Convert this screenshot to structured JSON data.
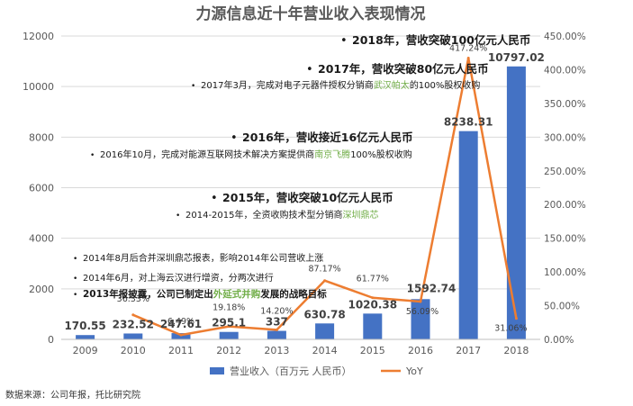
{
  "chart_data": {
    "type": "bar",
    "title": "力源信息近十年营业收入表现情况",
    "categories": [
      "2009",
      "2010",
      "2011",
      "2012",
      "2013",
      "2014",
      "2015",
      "2016",
      "2017",
      "2018"
    ],
    "series": [
      {
        "name": "营业收入（百万元 人民币）",
        "kind": "bar",
        "axis": "left",
        "values": [
          170.55,
          232.52,
          247.61,
          295.1,
          337,
          630.78,
          1020.38,
          1592.74,
          8238.31,
          10797.02
        ],
        "labels": [
          "170.55",
          "232.52",
          "247.61",
          "295.1",
          "337",
          "630.78",
          "1020.38",
          "1592.74",
          "8238.31",
          "10797.02"
        ],
        "color": "#4472C4"
      },
      {
        "name": "YoY",
        "kind": "line",
        "axis": "right",
        "values": [
          null,
          36.33,
          6.49,
          19.18,
          14.2,
          87.17,
          61.77,
          56.09,
          417.24,
          31.06
        ],
        "labels": [
          "",
          "36.33%",
          "6.49%",
          "19.18%",
          "14.20%",
          "87.17%",
          "61.77%",
          "56.09%",
          "417.24%",
          "31.06%"
        ],
        "color": "#ED7D31"
      }
    ],
    "left_axis": {
      "range": [
        0,
        12000
      ],
      "ticks": [
        0,
        2000,
        4000,
        6000,
        8000,
        10000,
        12000
      ],
      "tick_labels": [
        "0",
        "2000",
        "4000",
        "6000",
        "8000",
        "10000",
        "12000"
      ]
    },
    "right_axis": {
      "range": [
        0,
        450
      ],
      "ticks": [
        0,
        50,
        100,
        150,
        200,
        250,
        300,
        350,
        400,
        450
      ],
      "tick_labels": [
        "0.00%",
        "50.00%",
        "100.00%",
        "150.00%",
        "200.00%",
        "250.00%",
        "300.00%",
        "350.00%",
        "400.00%",
        "450.00%"
      ]
    },
    "legend": {
      "position": "bottom-center",
      "items": [
        "营业收入（百万元 人民币）",
        "YoY"
      ]
    },
    "annotations": [
      {
        "style": "bold",
        "segments": [
          {
            "text": "2018年，营收突破100亿元人民币"
          }
        ]
      },
      {
        "style": "bold",
        "segments": [
          {
            "text": "2017年，营收突破80亿元人民币"
          }
        ]
      },
      {
        "style": "normal",
        "segments": [
          {
            "text": "2017年3月，完成对电子元器件授权分销商"
          },
          {
            "text": "武汉帕太",
            "highlight": true
          },
          {
            "text": "的100%股权收购"
          }
        ]
      },
      {
        "style": "bold",
        "segments": [
          {
            "text": "2016年，营收接近16亿元人民币"
          }
        ]
      },
      {
        "style": "normal",
        "segments": [
          {
            "text": "2016年10月，完成对能源互联网技术解决方案提供商"
          },
          {
            "text": "南京飞腾",
            "highlight": true
          },
          {
            "text": "100%股权收购"
          }
        ]
      },
      {
        "style": "bold",
        "segments": [
          {
            "text": "2015年，营收突破10亿元人民币"
          }
        ]
      },
      {
        "style": "normal",
        "segments": [
          {
            "text": "2014-2015年，全资收购技术型分销商"
          },
          {
            "text": "深圳鼎芯",
            "highlight": true
          }
        ]
      },
      {
        "style": "normal",
        "segments": [
          {
            "text": "2014年8月后合并深圳鼎芯报表，影响2014年公司营收上涨"
          }
        ]
      },
      {
        "style": "normal",
        "segments": [
          {
            "text": "2014年6月，对上海云汉进行增资，分两次进行"
          }
        ]
      },
      {
        "style": "semibold",
        "segments": [
          {
            "text": "2013年报披露，公司已制定出"
          },
          {
            "text": "外延式并购",
            "highlight": true
          },
          {
            "text": "发展的战略目标"
          }
        ]
      }
    ],
    "source": "数据来源：公司年报，托比研究院"
  },
  "colors": {
    "bar": "#4472C4",
    "line": "#ED7D31",
    "highlight": "#70AD47",
    "text": "#595959",
    "grid": "#D9D9D9"
  }
}
